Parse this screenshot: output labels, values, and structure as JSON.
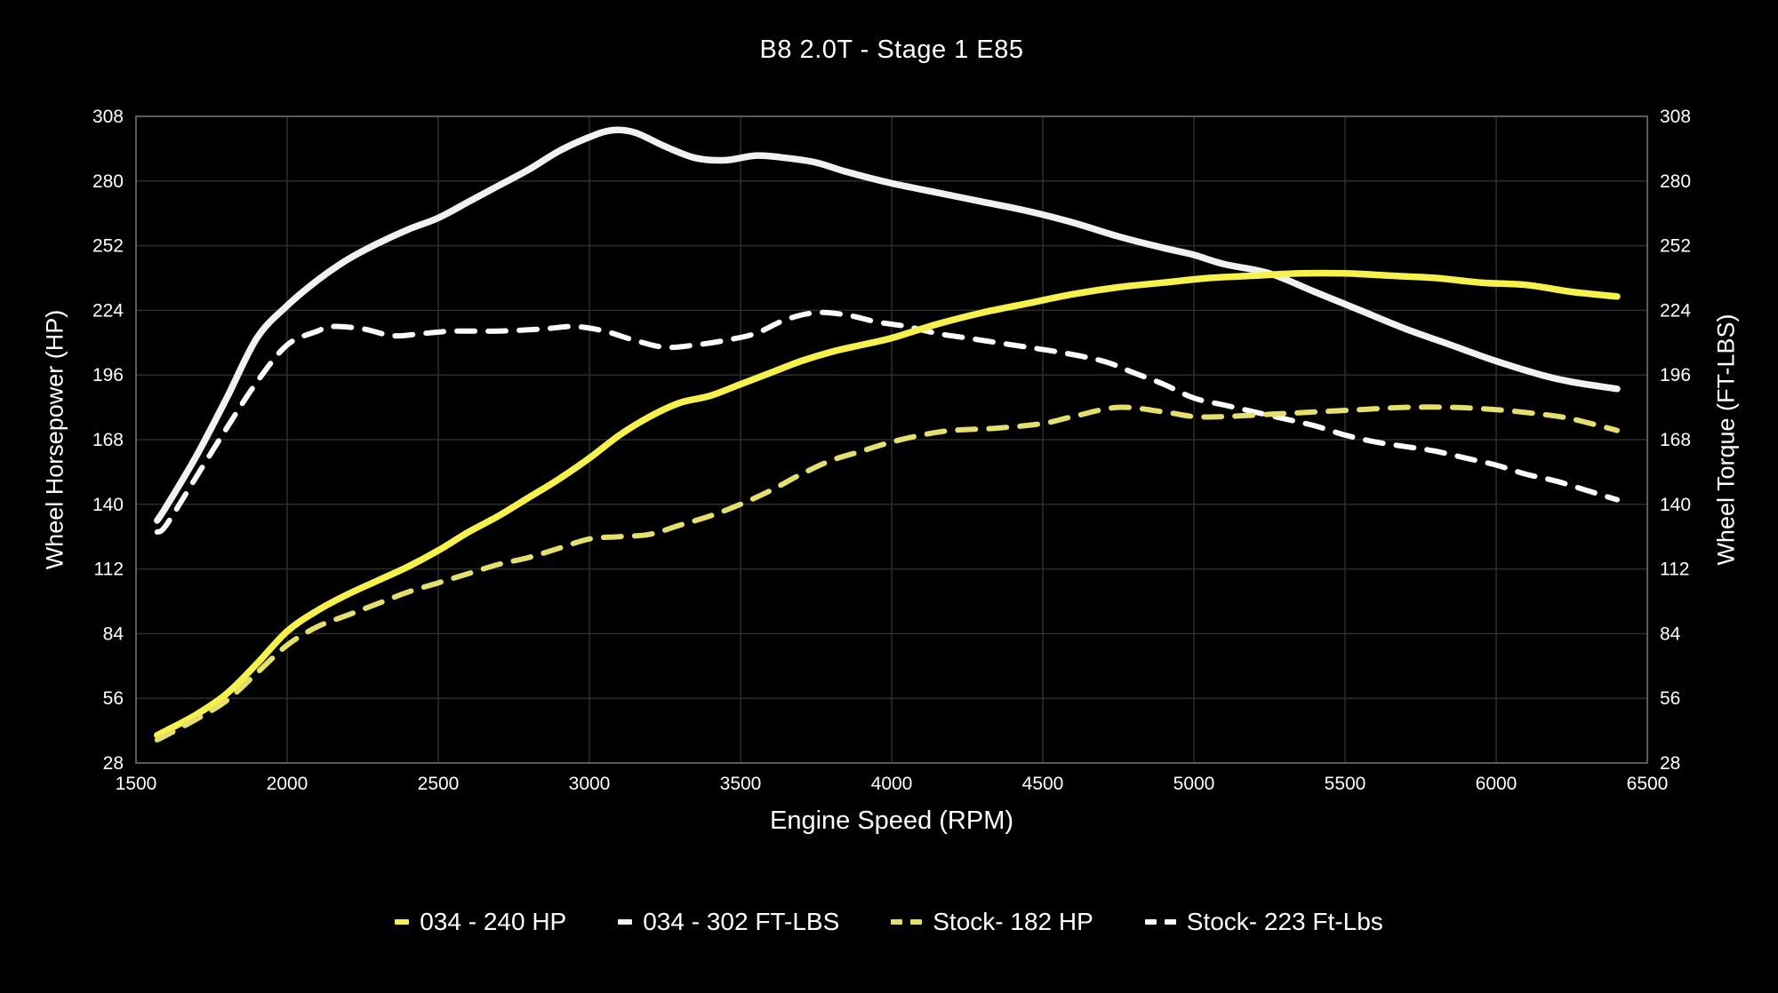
{
  "chart_data": {
    "type": "line",
    "title": "B8 2.0T - Stage 1 E85",
    "xlabel": "Engine Speed (RPM)",
    "ylabel_left": "Wheel Horsepower (HP)",
    "ylabel_right": "Wheel Torque (FT-LBS)",
    "xlim": [
      1500,
      6500
    ],
    "ylim": [
      28,
      308
    ],
    "xticks": [
      1500,
      2000,
      2500,
      3000,
      3500,
      4000,
      4500,
      5000,
      5500,
      6000,
      6500
    ],
    "yticks": [
      28,
      56,
      84,
      112,
      140,
      168,
      196,
      224,
      252,
      280,
      308
    ],
    "grid": true,
    "legend_position": "bottom",
    "background_color": "#000000",
    "grid_color": "#2d2d2d",
    "axis_border_color": "#5a5a5a",
    "text_color": "#ffffff",
    "series": [
      {
        "name": "034 - 302 FT-LBS",
        "color": "#f1f1f1",
        "style": "solid",
        "axis": "torque",
        "peak": 302,
        "points": [
          [
            1570,
            133
          ],
          [
            1600,
            139
          ],
          [
            1700,
            161
          ],
          [
            1800,
            186
          ],
          [
            1900,
            212
          ],
          [
            2000,
            226
          ],
          [
            2100,
            237
          ],
          [
            2200,
            246
          ],
          [
            2300,
            253
          ],
          [
            2400,
            259
          ],
          [
            2500,
            264
          ],
          [
            2600,
            271
          ],
          [
            2700,
            278
          ],
          [
            2800,
            285
          ],
          [
            2900,
            293
          ],
          [
            3000,
            299
          ],
          [
            3075,
            302
          ],
          [
            3150,
            301
          ],
          [
            3250,
            295
          ],
          [
            3350,
            290
          ],
          [
            3450,
            289
          ],
          [
            3550,
            291
          ],
          [
            3650,
            290
          ],
          [
            3750,
            288
          ],
          [
            3850,
            284
          ],
          [
            4000,
            279
          ],
          [
            4150,
            275
          ],
          [
            4300,
            271
          ],
          [
            4450,
            267
          ],
          [
            4600,
            262
          ],
          [
            4750,
            256
          ],
          [
            4900,
            251
          ],
          [
            5000,
            248
          ],
          [
            5100,
            244
          ],
          [
            5250,
            240
          ],
          [
            5400,
            232
          ],
          [
            5550,
            224
          ],
          [
            5700,
            216
          ],
          [
            5850,
            209
          ],
          [
            6000,
            202
          ],
          [
            6150,
            196
          ],
          [
            6250,
            193
          ],
          [
            6400,
            190
          ]
        ]
      },
      {
        "name": "Stock- 223 Ft-Lbs",
        "color": "#fcfcfc",
        "style": "dashed",
        "axis": "torque",
        "peak": 223,
        "points": [
          [
            1570,
            128
          ],
          [
            1600,
            131
          ],
          [
            1700,
            152
          ],
          [
            1800,
            173
          ],
          [
            1900,
            193
          ],
          [
            2000,
            209
          ],
          [
            2100,
            215
          ],
          [
            2150,
            217
          ],
          [
            2250,
            216
          ],
          [
            2350,
            213
          ],
          [
            2450,
            214
          ],
          [
            2550,
            215
          ],
          [
            2700,
            215
          ],
          [
            2850,
            216
          ],
          [
            2950,
            217
          ],
          [
            3050,
            215
          ],
          [
            3150,
            211
          ],
          [
            3250,
            208
          ],
          [
            3350,
            209
          ],
          [
            3450,
            211
          ],
          [
            3550,
            214
          ],
          [
            3650,
            220
          ],
          [
            3750,
            223
          ],
          [
            3850,
            222
          ],
          [
            3950,
            219
          ],
          [
            4050,
            217
          ],
          [
            4150,
            214
          ],
          [
            4250,
            212
          ],
          [
            4400,
            209
          ],
          [
            4550,
            206
          ],
          [
            4700,
            202
          ],
          [
            4800,
            197
          ],
          [
            4900,
            192
          ],
          [
            5000,
            186
          ],
          [
            5100,
            183
          ],
          [
            5200,
            180
          ],
          [
            5300,
            177
          ],
          [
            5400,
            174
          ],
          [
            5500,
            170
          ],
          [
            5600,
            167
          ],
          [
            5700,
            165
          ],
          [
            5800,
            163
          ],
          [
            5900,
            160
          ],
          [
            6000,
            157
          ],
          [
            6100,
            153
          ],
          [
            6200,
            150
          ],
          [
            6300,
            146
          ],
          [
            6400,
            142
          ]
        ]
      },
      {
        "name": "034 - 240 HP",
        "color": "#f7f14d",
        "style": "solid",
        "axis": "hp",
        "peak": 240,
        "points": [
          [
            1570,
            40
          ],
          [
            1600,
            42
          ],
          [
            1700,
            49
          ],
          [
            1800,
            58
          ],
          [
            1900,
            71
          ],
          [
            2000,
            85
          ],
          [
            2100,
            94
          ],
          [
            2200,
            101
          ],
          [
            2300,
            107
          ],
          [
            2400,
            113
          ],
          [
            2500,
            120
          ],
          [
            2600,
            128
          ],
          [
            2700,
            135
          ],
          [
            2800,
            143
          ],
          [
            2900,
            151
          ],
          [
            3000,
            160
          ],
          [
            3100,
            170
          ],
          [
            3200,
            178
          ],
          [
            3300,
            184
          ],
          [
            3400,
            187
          ],
          [
            3500,
            192
          ],
          [
            3600,
            197
          ],
          [
            3700,
            202
          ],
          [
            3800,
            206
          ],
          [
            3900,
            209
          ],
          [
            4000,
            212
          ],
          [
            4150,
            218
          ],
          [
            4300,
            223
          ],
          [
            4450,
            227
          ],
          [
            4600,
            231
          ],
          [
            4750,
            234
          ],
          [
            4900,
            236
          ],
          [
            5050,
            238
          ],
          [
            5200,
            239
          ],
          [
            5350,
            240
          ],
          [
            5500,
            240
          ],
          [
            5650,
            239
          ],
          [
            5800,
            238
          ],
          [
            5950,
            236
          ],
          [
            6100,
            235
          ],
          [
            6250,
            232
          ],
          [
            6400,
            230
          ]
        ]
      },
      {
        "name": "Stock- 182 HP",
        "color": "#e5df6d",
        "style": "dashed",
        "axis": "hp",
        "peak": 182,
        "points": [
          [
            1570,
            38
          ],
          [
            1600,
            40
          ],
          [
            1700,
            47
          ],
          [
            1800,
            55
          ],
          [
            1900,
            67
          ],
          [
            2000,
            79
          ],
          [
            2100,
            87
          ],
          [
            2200,
            92
          ],
          [
            2300,
            97
          ],
          [
            2400,
            102
          ],
          [
            2500,
            106
          ],
          [
            2600,
            110
          ],
          [
            2700,
            114
          ],
          [
            2800,
            117
          ],
          [
            2900,
            121
          ],
          [
            3000,
            125
          ],
          [
            3100,
            126
          ],
          [
            3200,
            127
          ],
          [
            3300,
            131
          ],
          [
            3400,
            135
          ],
          [
            3500,
            140
          ],
          [
            3600,
            146
          ],
          [
            3700,
            153
          ],
          [
            3800,
            159
          ],
          [
            3900,
            163
          ],
          [
            4000,
            167
          ],
          [
            4100,
            170
          ],
          [
            4200,
            172
          ],
          [
            4350,
            173
          ],
          [
            4500,
            175
          ],
          [
            4600,
            178
          ],
          [
            4750,
            182
          ],
          [
            4900,
            180
          ],
          [
            5000,
            178
          ],
          [
            5100,
            178
          ],
          [
            5250,
            179
          ],
          [
            5400,
            180
          ],
          [
            5550,
            181
          ],
          [
            5700,
            182
          ],
          [
            5850,
            182
          ],
          [
            6000,
            181
          ],
          [
            6150,
            179
          ],
          [
            6250,
            177
          ],
          [
            6400,
            172
          ]
        ]
      }
    ]
  }
}
